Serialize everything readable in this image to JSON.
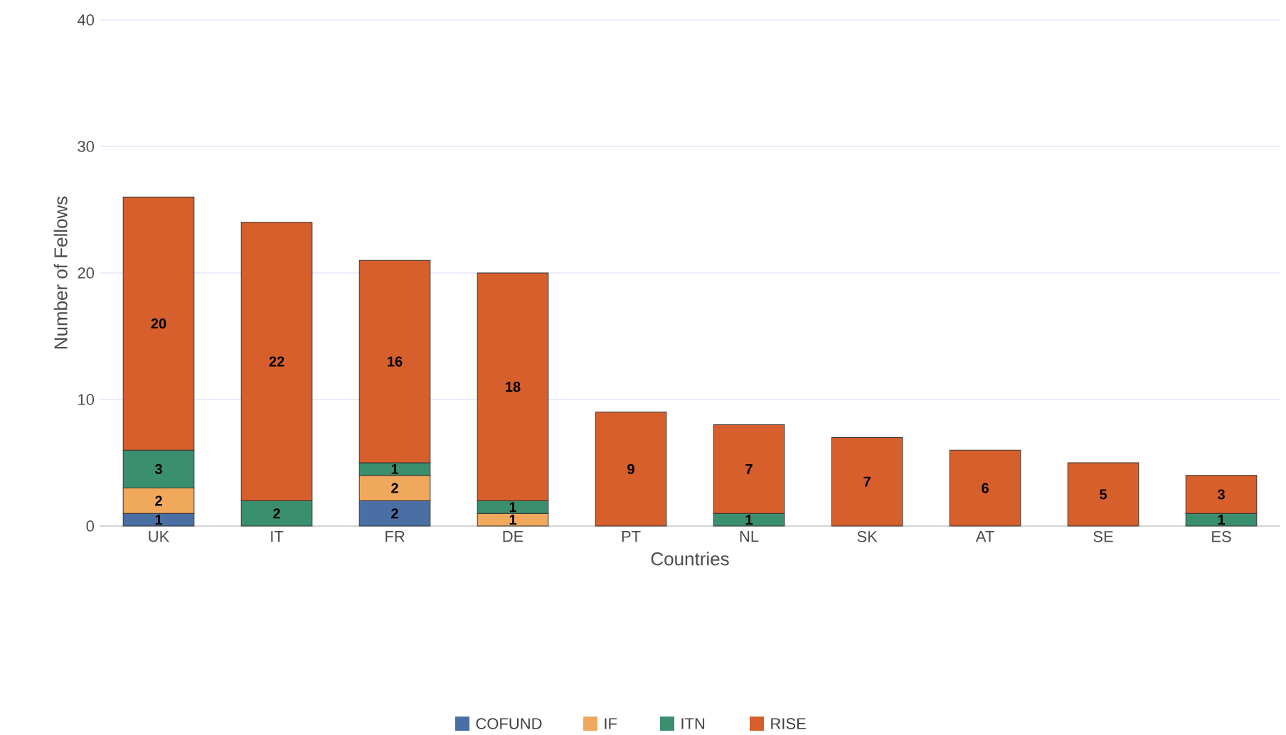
{
  "chart_data": {
    "type": "bar",
    "stacked": true,
    "xlabel": "Countries",
    "ylabel": "Number of Fellows",
    "categories": [
      "UK",
      "IT",
      "FR",
      "DE",
      "PT",
      "NL",
      "SK",
      "AT",
      "SE",
      "ES"
    ],
    "series": [
      {
        "name": "COFUND",
        "color": "#4a6fa5",
        "values": [
          1,
          null,
          2,
          null,
          null,
          null,
          null,
          null,
          null,
          null
        ]
      },
      {
        "name": "IF",
        "color": "#f0a95c",
        "values": [
          2,
          null,
          2,
          1,
          null,
          null,
          null,
          null,
          null,
          null
        ]
      },
      {
        "name": "ITN",
        "color": "#3a8f6e",
        "values": [
          3,
          2,
          1,
          1,
          null,
          1,
          null,
          null,
          null,
          1
        ]
      },
      {
        "name": "RISE",
        "color": "#d65f2b",
        "values": [
          20,
          22,
          16,
          18,
          9,
          7,
          7,
          6,
          5,
          3
        ]
      }
    ],
    "ylim": [
      0,
      40
    ],
    "yticks": [
      0,
      10,
      20,
      30,
      40
    ],
    "grid": "y",
    "legend": "bottom",
    "data_labels": true
  }
}
